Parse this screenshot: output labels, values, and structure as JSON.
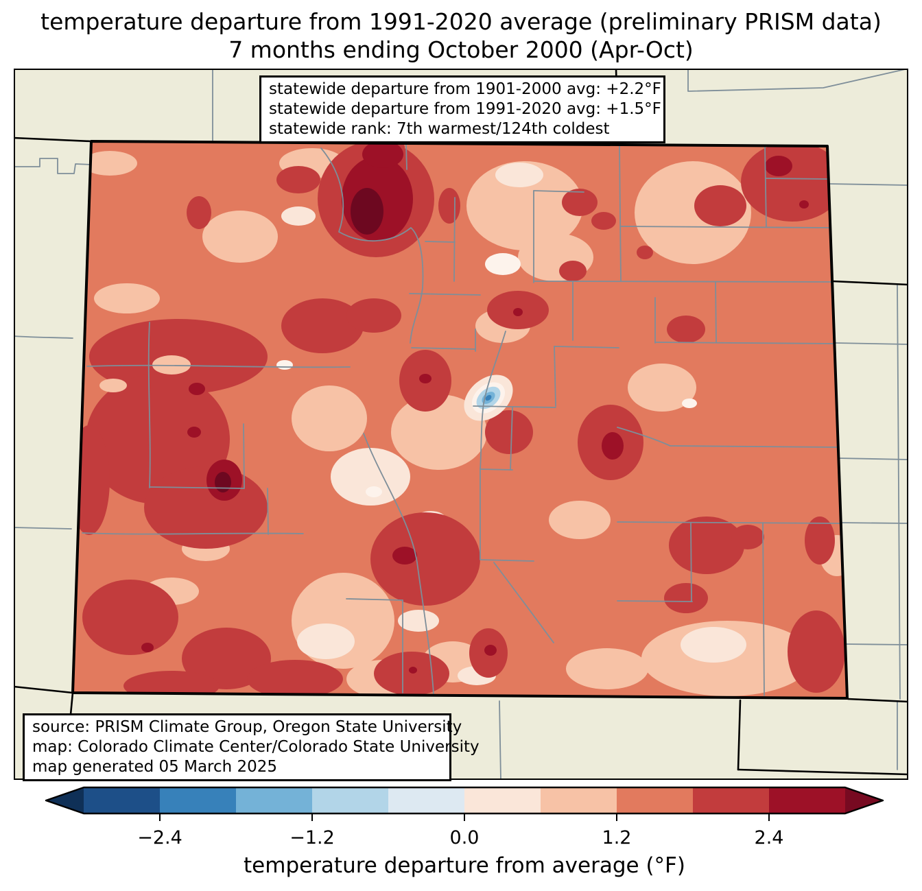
{
  "title": {
    "line1": "temperature departure from 1991-2020 average (preliminary PRISM data)",
    "line2": "7 months ending October 2000 (Apr-Oct)"
  },
  "stats_box": {
    "lines": [
      "statewide departure from 1901-2000 avg: +2.2°F",
      "statewide departure from 1991-2020 avg: +1.5°F",
      "statewide rank: 7th warmest/124th coldest"
    ]
  },
  "source_box": {
    "lines": [
      "source: PRISM Climate Group, Oregon State University",
      "map: Colorado Climate Center/Colorado State University",
      "map generated 05 March 2025"
    ]
  },
  "colorbar": {
    "axis_label": "temperature departure from average (°F)",
    "tick_labels": [
      "−2.4",
      "−1.2",
      "0.0",
      "1.2",
      "2.4"
    ],
    "tick_values": [
      -2.4,
      -1.2,
      0.0,
      1.2,
      2.4
    ],
    "range": [
      -3.0,
      3.0
    ],
    "segments": [
      "#1d4f88",
      "#3781ba",
      "#74b2d7",
      "#b2d5e8",
      "#dde9f2",
      "#fae6d9",
      "#f7c2a6",
      "#e27a5e",
      "#c23c3d",
      "#9d1127"
    ],
    "under_color": "#0f3057",
    "over_color": "#770a21"
  },
  "colors": {
    "beige": "#edecda",
    "county": "#7e8e99",
    "salmon": "#e27a5e",
    "pink": "#f7c2a6",
    "cream": "#fae6d9",
    "offwhite": "#fdf3ec",
    "red": "#c23c3d",
    "maroon": "#9d1127",
    "darkest": "#6d0820",
    "blue_light": "#b2d5e8",
    "blue_mid": "#74b2d7",
    "blue_deep": "#3781ba"
  }
}
